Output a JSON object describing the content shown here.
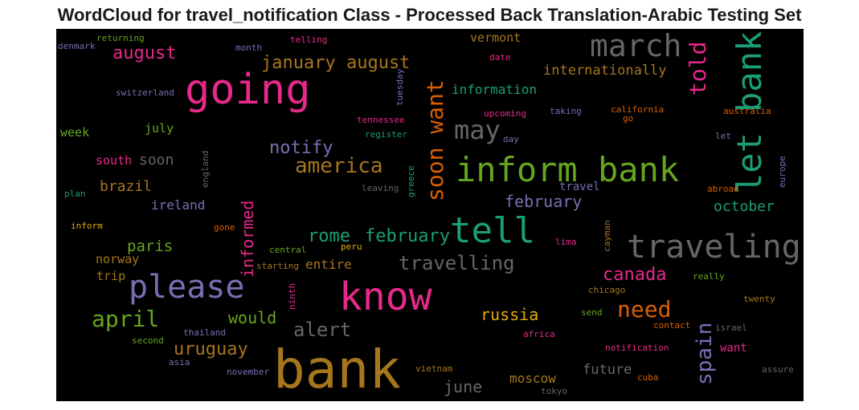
{
  "title": "WordCloud for travel_notification Class - Processed Back Translation-Arabic Testing Set",
  "colors": {
    "pink": "#e7298a",
    "green": "#66a61e",
    "teal": "#1b9e77",
    "gold": "#a6761d",
    "gray": "#666666",
    "purple": "#7570b3",
    "orange": "#d95f02",
    "yellow": "#e6ab02"
  },
  "words": {
    "bank": "bank",
    "going": "going",
    "inform_bank": "inform bank",
    "traveling": "traveling",
    "know": "know",
    "please": "please",
    "tell": "tell",
    "let_bank": "let bank",
    "march": "march",
    "soon_want": "soon want",
    "may": "may",
    "january_august": "january august",
    "told": "told",
    "america": "america",
    "need": "need",
    "april": "april",
    "travelling": "travelling",
    "alert": "alert",
    "notify": "notify",
    "august": "august",
    "rome": "rome",
    "february_1": "february",
    "february_2": "february",
    "canada": "canada",
    "russia": "russia",
    "uruguay": "uruguay",
    "spain": "spain",
    "informed": "informed",
    "information": "information",
    "internationally": "internationally",
    "october": "october",
    "brazil": "brazil",
    "paris": "paris",
    "would": "would",
    "soon": "soon",
    "june": "june",
    "future": "future",
    "moscow": "moscow",
    "ireland": "ireland",
    "norway": "norway",
    "trip": "trip",
    "entire": "entire",
    "south": "south",
    "vermont": "vermont",
    "july": "july",
    "week": "week",
    "travel": "travel",
    "want": "want",
    "returning": "returning",
    "denmark": "denmark",
    "month": "month",
    "telling": "telling",
    "date": "date",
    "switzerland": "switzerland",
    "tuesday": "tuesday",
    "upcoming": "upcoming",
    "taking": "taking",
    "california": "california",
    "australia": "australia",
    "go": "go",
    "tennessee": "tennessee",
    "register": "register",
    "day": "day",
    "let": "let",
    "england": "england",
    "greece": "greece",
    "europe": "europe",
    "leaving": "leaving",
    "plan": "plan",
    "abroad": "abroad",
    "inform": "inform",
    "gone": "gone",
    "cayman": "cayman",
    "lima": "lima",
    "peru": "peru",
    "central": "central",
    "starting": "starting",
    "really": "really",
    "ninth": "ninth",
    "chicago": "chicago",
    "twenty": "twenty",
    "send": "send",
    "thailand": "thailand",
    "contact": "contact",
    "israel": "israel",
    "second": "second",
    "africa": "africa",
    "notification": "notification",
    "asia": "asia",
    "november": "november",
    "vietnam": "vietnam",
    "assure": "assure",
    "cuba": "cuba",
    "tokyo": "tokyo"
  }
}
